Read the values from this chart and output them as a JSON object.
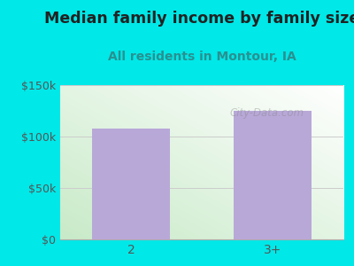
{
  "categories": [
    "2",
    "3+"
  ],
  "values": [
    108000,
    125000
  ],
  "bar_color": "#b8a8d8",
  "title": "Median family income by family size",
  "subtitle": "All residents in Montour, IA",
  "title_fontsize": 12.5,
  "subtitle_fontsize": 10,
  "title_color": "#222222",
  "subtitle_color": "#2a9090",
  "background_color": "#00e8e8",
  "ylim": [
    0,
    150000
  ],
  "yticks": [
    0,
    50000,
    100000,
    150000
  ],
  "ytick_labels": [
    "$0",
    "$50k",
    "$100k",
    "$150k"
  ],
  "watermark": "City-Data.com",
  "gradient_colors": [
    "#c8eac8",
    "#f0faf8",
    "#ffffff"
  ],
  "grid_color": "#cccccc"
}
